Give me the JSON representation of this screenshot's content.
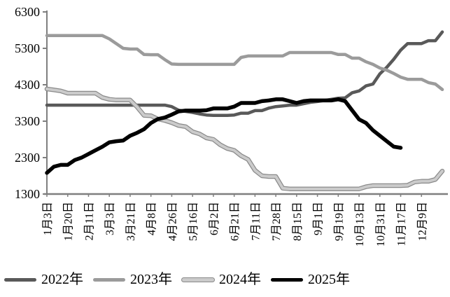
{
  "chart_data": {
    "type": "line",
    "title": "",
    "xlabel": "",
    "ylabel": "",
    "grid": "off",
    "legend_position": "bottom",
    "ylim": [
      1300,
      6300
    ],
    "y_ticks": [
      6300,
      5300,
      4300,
      3300,
      2300,
      1300
    ],
    "x_tick_labels": [
      "1月3日",
      "1月20日",
      "2月11日",
      "3月3日",
      "3月21日",
      "4月8日",
      "4月26日",
      "5月16日",
      "6月2日",
      "6月21日",
      "7月11日",
      "7月28日",
      "8月15日",
      "9月1日",
      "9月19日",
      "10月13日",
      "10月31日",
      "11月17日",
      "12月9日"
    ],
    "points_per_label": 3,
    "n_points": 58,
    "axis_color": "#7f7f7f",
    "series": [
      {
        "name": "2022年",
        "color": "#595959",
        "width": 4.5,
        "values": [
          3740,
          3740,
          3740,
          3740,
          3740,
          3740,
          3740,
          3740,
          3740,
          3740,
          3740,
          3740,
          3740,
          3740,
          3740,
          3740,
          3740,
          3740,
          3700,
          3600,
          3570,
          3540,
          3500,
          3470,
          3460,
          3460,
          3460,
          3470,
          3520,
          3520,
          3590,
          3590,
          3660,
          3700,
          3720,
          3740,
          3740,
          3780,
          3820,
          3840,
          3870,
          3900,
          3930,
          3940,
          4080,
          4130,
          4270,
          4320,
          4600,
          4780,
          5000,
          5250,
          5430,
          5430,
          5430,
          5510,
          5510,
          5750
        ]
      },
      {
        "name": "2023年",
        "color": "#9b9b9b",
        "width": 4.5,
        "values": [
          5650,
          5650,
          5650,
          5650,
          5650,
          5650,
          5650,
          5650,
          5650,
          5560,
          5430,
          5300,
          5280,
          5280,
          5130,
          5125,
          5125,
          4990,
          4870,
          4860,
          4860,
          4860,
          4860,
          4860,
          4860,
          4860,
          4860,
          4860,
          5050,
          5090,
          5090,
          5090,
          5090,
          5090,
          5090,
          5185,
          5185,
          5185,
          5185,
          5185,
          5185,
          5185,
          5130,
          5130,
          5030,
          5030,
          4930,
          4860,
          4760,
          4700,
          4610,
          4510,
          4450,
          4450,
          4450,
          4360,
          4320,
          4170
        ]
      },
      {
        "name": "2024年",
        "color": "#cbcbcb",
        "outline": "#8a8a8a",
        "width": 4,
        "values": [
          4185,
          4160,
          4130,
          4070,
          4070,
          4070,
          4070,
          4070,
          3950,
          3900,
          3880,
          3880,
          3880,
          3690,
          3460,
          3450,
          3360,
          3320,
          3260,
          3180,
          3150,
          3010,
          2950,
          2840,
          2800,
          2650,
          2550,
          2500,
          2350,
          2250,
          1950,
          1800,
          1780,
          1780,
          1460,
          1440,
          1440,
          1440,
          1440,
          1440,
          1440,
          1440,
          1440,
          1440,
          1440,
          1440,
          1500,
          1530,
          1530,
          1530,
          1530,
          1530,
          1540,
          1630,
          1650,
          1650,
          1700,
          1930
        ]
      },
      {
        "name": "2025年",
        "color": "#000000",
        "width": 5.5,
        "values": [
          1880,
          2050,
          2100,
          2100,
          2230,
          2300,
          2400,
          2500,
          2600,
          2720,
          2750,
          2770,
          2900,
          2980,
          3080,
          3250,
          3360,
          3400,
          3480,
          3570,
          3590,
          3590,
          3590,
          3600,
          3650,
          3650,
          3650,
          3700,
          3800,
          3800,
          3800,
          3850,
          3870,
          3900,
          3900,
          3850,
          3800,
          3850,
          3870,
          3870,
          3870,
          3870,
          3900,
          3850,
          3600,
          3350,
          3250,
          3050,
          2900,
          2750,
          2600,
          2570,
          null,
          null,
          null,
          null,
          null,
          null
        ]
      }
    ]
  }
}
